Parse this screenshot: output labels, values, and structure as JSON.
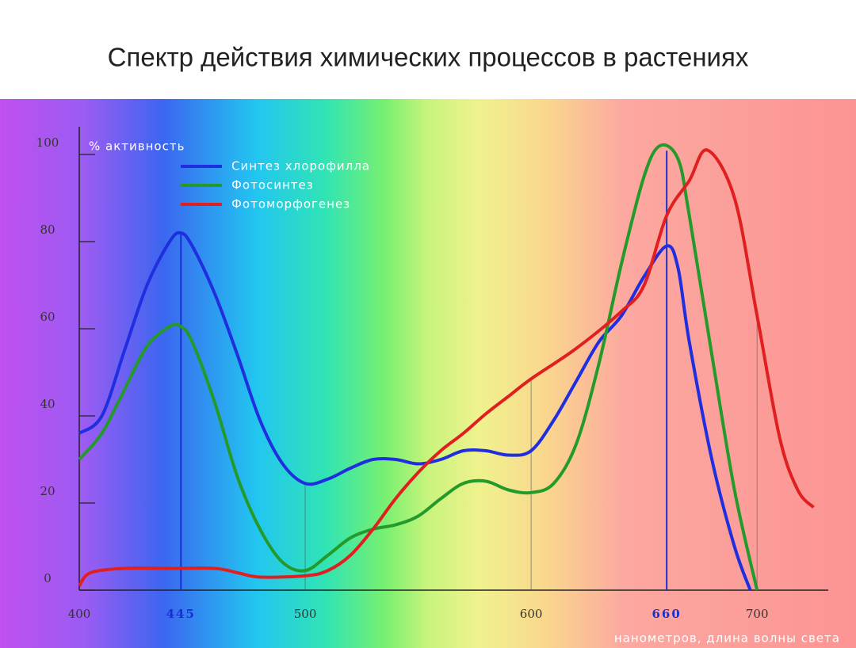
{
  "chart_data": {
    "type": "line",
    "title": "Спектр действия химических процессов в растениях",
    "y_label": "% активность",
    "x_label": "нанометров, длина волны света",
    "xlim": [
      400,
      728
    ],
    "ylim": [
      0,
      105
    ],
    "xticks": [
      400,
      445,
      500,
      600,
      660,
      700
    ],
    "xtick_colors": [
      "#333333",
      "#1a2fd0",
      "#333333",
      "#333333",
      "#1a2fd0",
      "#333333"
    ],
    "yticks": [
      0,
      20,
      40,
      60,
      80,
      100
    ],
    "series": [
      {
        "name": "Синтез хлорофилла",
        "color": "#1f2fe0",
        "x": [
          400,
          410,
          420,
          430,
          440,
          445,
          450,
          460,
          470,
          480,
          490,
          500,
          510,
          520,
          530,
          540,
          550,
          560,
          570,
          580,
          590,
          600,
          610,
          620,
          630,
          640,
          650,
          660,
          665,
          670,
          680,
          690,
          697
        ],
        "values": [
          36,
          40,
          55,
          70,
          80,
          82,
          79,
          68,
          54,
          39,
          29,
          24.5,
          25.5,
          28,
          30,
          30,
          29,
          30,
          32,
          32,
          31,
          32,
          39,
          48,
          57,
          63,
          72,
          79,
          74,
          57,
          30,
          10,
          0
        ]
      },
      {
        "name": "Фотосинтез",
        "color": "#239a2a",
        "x": [
          400,
          410,
          420,
          430,
          440,
          445,
          450,
          460,
          470,
          480,
          490,
          500,
          510,
          520,
          530,
          540,
          550,
          560,
          570,
          580,
          590,
          600,
          610,
          620,
          630,
          640,
          650,
          657,
          665,
          670,
          680,
          690,
          700
        ],
        "values": [
          30,
          36,
          46,
          56,
          60.5,
          60.5,
          57,
          43,
          26,
          14,
          6.4,
          4.5,
          8,
          12,
          14,
          15,
          17,
          21,
          24.5,
          25,
          23,
          22.4,
          24.5,
          33.6,
          52,
          75,
          95,
          102,
          99,
          86,
          54,
          23,
          0
        ]
      },
      {
        "name": "Фотоморфогенез",
        "color": "#e02020",
        "x": [
          400,
          405,
          420,
          440,
          460,
          470,
          480,
          500,
          510,
          520,
          530,
          540,
          550,
          560,
          570,
          580,
          590,
          600,
          620,
          640,
          650,
          660,
          670,
          678,
          690,
          700,
          710,
          718,
          725
        ],
        "values": [
          1,
          4,
          5,
          5,
          5,
          4,
          3,
          3.3,
          4.5,
          8,
          14,
          21,
          27,
          32,
          36,
          40.5,
          44.5,
          48.5,
          55.5,
          64,
          70,
          86,
          94,
          101,
          90,
          63,
          35,
          23,
          19
        ]
      }
    ]
  }
}
